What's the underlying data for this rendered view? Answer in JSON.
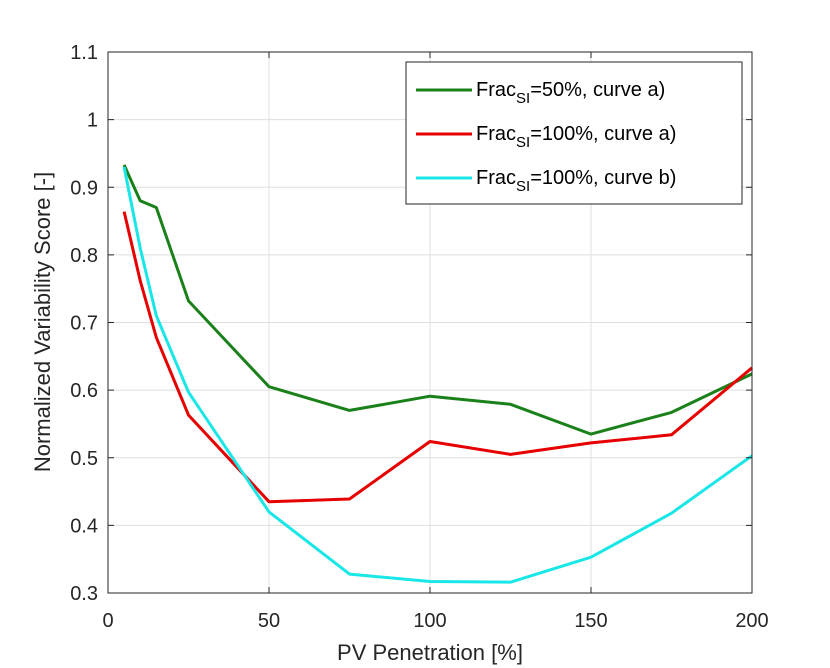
{
  "chart_data": {
    "type": "line",
    "title": "",
    "xlabel": "PV Penetration [%]",
    "ylabel": "Normalized Variability Score [-]",
    "xlim": [
      0,
      200
    ],
    "ylim": [
      0.3,
      1.1
    ],
    "xticks": [
      0,
      50,
      100,
      150,
      200
    ],
    "xtick_labels": [
      "0",
      "50",
      "100",
      "150",
      "200"
    ],
    "yticks": [
      0.3,
      0.4,
      0.5,
      0.6,
      0.7,
      0.8,
      0.9,
      1.0,
      1.1
    ],
    "ytick_labels": [
      "0.3",
      "0.4",
      "0.5",
      "0.6",
      "0.7",
      "0.8",
      "0.9",
      "1",
      "1.1"
    ],
    "grid": true,
    "legend_position": "top-right",
    "series": [
      {
        "name": "Frac_SI=50%, curve a)",
        "label_main": "Frac",
        "label_sub": "SI",
        "label_rest": "=50%, curve a)",
        "color": "#1a801a",
        "x": [
          5,
          10,
          15,
          25,
          50,
          75,
          100,
          125,
          150,
          175,
          200
        ],
        "y": [
          0.933,
          0.88,
          0.87,
          0.732,
          0.605,
          0.57,
          0.591,
          0.579,
          0.535,
          0.567,
          0.624
        ]
      },
      {
        "name": "Frac_SI=100%, curve a)",
        "label_main": "Frac",
        "label_sub": "SI",
        "label_rest": "=100%, curve a)",
        "color": "#e60000",
        "x": [
          5,
          10,
          15,
          25,
          50,
          75,
          100,
          125,
          150,
          175,
          200
        ],
        "y": [
          0.864,
          0.762,
          0.678,
          0.563,
          0.435,
          0.439,
          0.524,
          0.505,
          0.522,
          0.534,
          0.633
        ]
      },
      {
        "name": "Frac_SI=100%, curve b)",
        "label_main": "Frac",
        "label_sub": "SI",
        "label_rest": "=100%, curve b)",
        "color": "#19e6e6",
        "x": [
          5,
          10,
          15,
          25,
          50,
          75,
          100,
          125,
          150,
          175,
          200
        ],
        "y": [
          0.93,
          0.81,
          0.71,
          0.597,
          0.42,
          0.328,
          0.317,
          0.316,
          0.353,
          0.418,
          0.503
        ]
      }
    ]
  }
}
